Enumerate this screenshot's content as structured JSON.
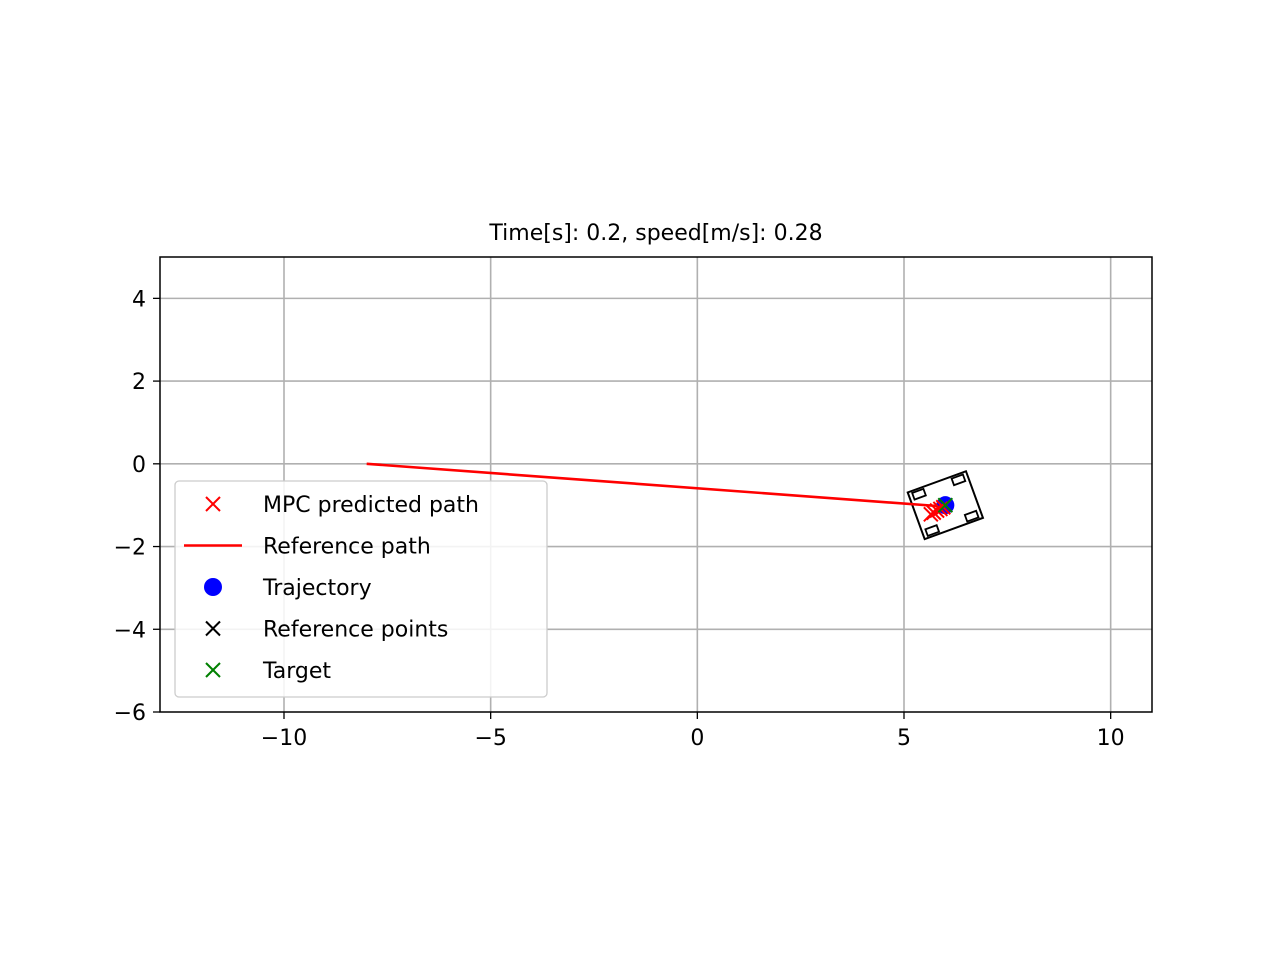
{
  "chart_data": {
    "type": "line",
    "title": "Time[s]: 0.2, speed[m/s]: 0.28",
    "xlabel": "",
    "ylabel": "",
    "xlim": [
      -13,
      11
    ],
    "ylim": [
      -6,
      5
    ],
    "grid": true,
    "legend_position": "lower-left",
    "xticks": [
      -10,
      -5,
      0,
      5,
      10
    ],
    "xtick_labels": [
      "−10",
      "−5",
      "0",
      "5",
      "10"
    ],
    "yticks": [
      -6,
      -4,
      -2,
      0,
      2,
      4
    ],
    "ytick_labels": [
      "−6",
      "−4",
      "−2",
      "0",
      "2",
      "4"
    ],
    "series": [
      {
        "name": "MPC predicted path",
        "kind": "marker-x",
        "color": "#ff0000",
        "x": [
          5.65,
          5.72,
          5.8,
          5.88,
          5.95
        ],
        "y": [
          -1.22,
          -1.18,
          -1.13,
          -1.09,
          -1.05
        ]
      },
      {
        "name": "Reference path",
        "kind": "line",
        "color": "#ff0000",
        "x": [
          -8.0,
          5.8
        ],
        "y": [
          0.0,
          -1.02
        ]
      },
      {
        "name": "Trajectory",
        "kind": "marker-circle",
        "color": "#0000ff",
        "x": [
          6.0
        ],
        "y": [
          -1.0
        ]
      },
      {
        "name": "Reference points",
        "kind": "marker-x",
        "color": "#000000",
        "x": [],
        "y": []
      },
      {
        "name": "Target",
        "kind": "marker-x",
        "color": "#008000",
        "x": [
          6.0
        ],
        "y": [
          -1.0
        ]
      }
    ],
    "vehicle": {
      "center": [
        6.0,
        -1.0
      ],
      "heading_deg": 20,
      "length": 1.5,
      "width": 1.2,
      "color": "#000000"
    }
  }
}
